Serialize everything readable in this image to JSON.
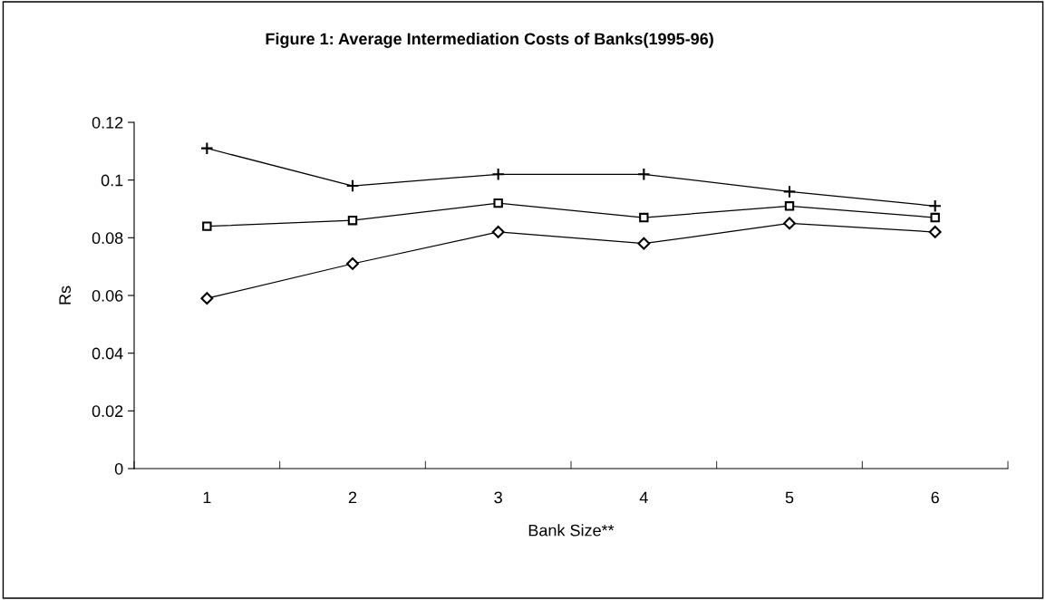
{
  "chart_data": {
    "type": "line",
    "title": "Figure 1: Average Intermediation Costs of Banks(1995-96)",
    "xlabel": "Bank Size**",
    "ylabel": "Rs",
    "categories": [
      "1",
      "2",
      "3",
      "4",
      "5",
      "6"
    ],
    "series": [
      {
        "color": "#000000",
        "marker": "cross",
        "values": [
          0.111,
          0.098,
          0.102,
          0.102,
          0.096,
          0.091
        ]
      },
      {
        "color": "#000000",
        "marker": "square",
        "values": [
          0.084,
          0.086,
          0.092,
          0.087,
          0.091,
          0.087
        ]
      },
      {
        "color": "#000000",
        "marker": "diamond",
        "values": [
          0.059,
          0.071,
          0.082,
          0.078,
          0.085,
          0.082
        ]
      }
    ],
    "ylim": [
      0,
      0.12
    ],
    "yticks": [
      0,
      0.02,
      0.04,
      0.06,
      0.08,
      0.1,
      0.12
    ],
    "grid": false
  }
}
